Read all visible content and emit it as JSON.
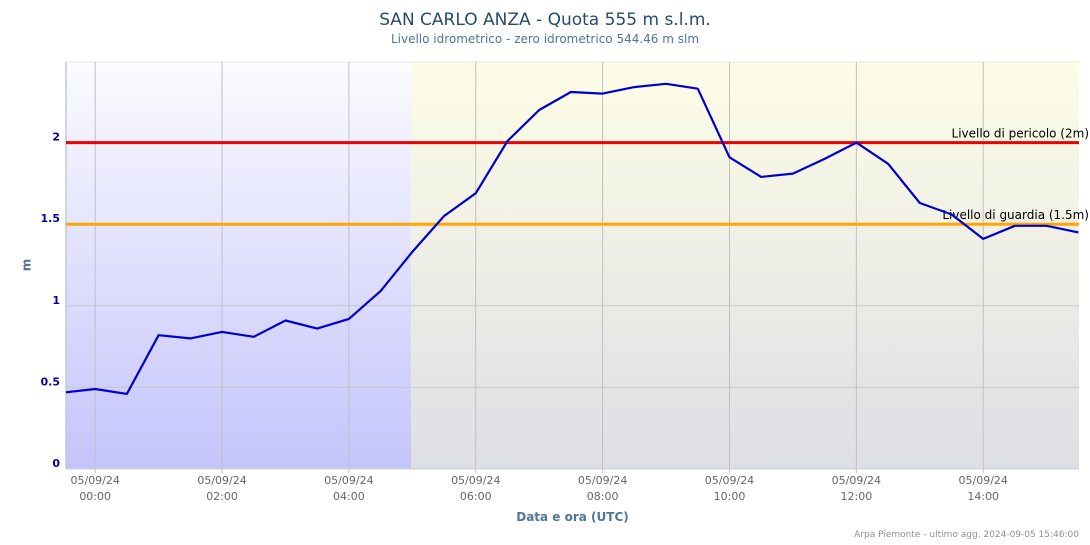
{
  "header": {
    "title": "SAN CARLO ANZA - Quota 555 m s.l.m.",
    "subtitle": "Livello idrometrico - zero idrometrico 544.46 m slm"
  },
  "footer": {
    "credit": "Arpa Piemonte - ultimo agg. 2024-09-05 15:46:00"
  },
  "colors": {
    "series": "#0000cc",
    "danger_line": "#ee0000",
    "guard_line": "#ffa500",
    "axis_text": "#0000aa",
    "label_text": "#4d759e"
  },
  "chart_data": {
    "type": "line",
    "title": "SAN CARLO ANZA - Quota 555 m s.l.m.",
    "subtitle": "Livello idrometrico - zero idrometrico 544.46 m slm",
    "xlabel": "Data e ora (UTC)",
    "ylabel": "m",
    "ylim": [
      0,
      2.5
    ],
    "yticks": [
      0,
      0.5,
      1,
      1.5,
      2
    ],
    "ytick_labels": [
      "0",
      "0.5",
      "1",
      "1.5",
      "2"
    ],
    "xtick_labels": [
      [
        "05/09/24",
        "00:00"
      ],
      [
        "05/09/24",
        "02:00"
      ],
      [
        "05/09/24",
        "04:00"
      ],
      [
        "05/09/24",
        "06:00"
      ],
      [
        "05/09/24",
        "08:00"
      ],
      [
        "05/09/24",
        "10:00"
      ],
      [
        "05/09/24",
        "12:00"
      ],
      [
        "05/09/24",
        "14:00"
      ]
    ],
    "xtick_hours": [
      0,
      2,
      4,
      6,
      8,
      10,
      12,
      14
    ],
    "x_range_hours": [
      -0.46,
      15.51
    ],
    "grid": true,
    "legend": "none",
    "background_bands": [
      {
        "from_hour": -0.46,
        "to_hour": 4.98,
        "style": "blue-gradient"
      },
      {
        "from_hour": 4.98,
        "to_hour": 15.51,
        "style": "yellow-gray-gradient"
      }
    ],
    "thresholds": [
      {
        "label": "Livello di pericolo (2m)",
        "value": 2.0,
        "color": "#ee0000"
      },
      {
        "label": "Livello di guardia (1.5m)",
        "value": 1.5,
        "color": "#ffa500"
      }
    ],
    "series": [
      {
        "name": "Livello idrometrico",
        "x": [
          "04/09 23:30",
          "05/09 00:00",
          "00:30",
          "01:00",
          "01:30",
          "02:00",
          "02:30",
          "03:00",
          "03:30",
          "04:00",
          "04:30",
          "05:00",
          "05:30",
          "06:00",
          "06:30",
          "07:00",
          "07:30",
          "08:00",
          "08:30",
          "09:00",
          "09:30",
          "10:00",
          "10:30",
          "11:00",
          "11:30",
          "12:00",
          "12:30",
          "13:00",
          "13:30",
          "14:00",
          "14:30",
          "15:00",
          "15:30"
        ],
        "x_hours": [
          -0.46,
          0,
          0.5,
          1,
          1.5,
          2,
          2.5,
          3,
          3.5,
          4,
          4.5,
          5,
          5.5,
          6,
          6.5,
          7,
          7.5,
          8,
          8.5,
          9,
          9.5,
          10,
          10.5,
          11,
          11.5,
          12,
          12.5,
          13,
          13.5,
          14,
          14.5,
          15,
          15.5
        ],
        "values": [
          0.47,
          0.49,
          0.46,
          0.82,
          0.8,
          0.84,
          0.81,
          0.91,
          0.86,
          0.92,
          1.09,
          1.33,
          1.55,
          1.69,
          2.01,
          2.2,
          2.31,
          2.3,
          2.34,
          2.36,
          2.33,
          1.91,
          1.79,
          1.81,
          1.9,
          2.0,
          1.87,
          1.63,
          1.56,
          1.41,
          1.49,
          1.49,
          1.45
        ]
      }
    ]
  }
}
